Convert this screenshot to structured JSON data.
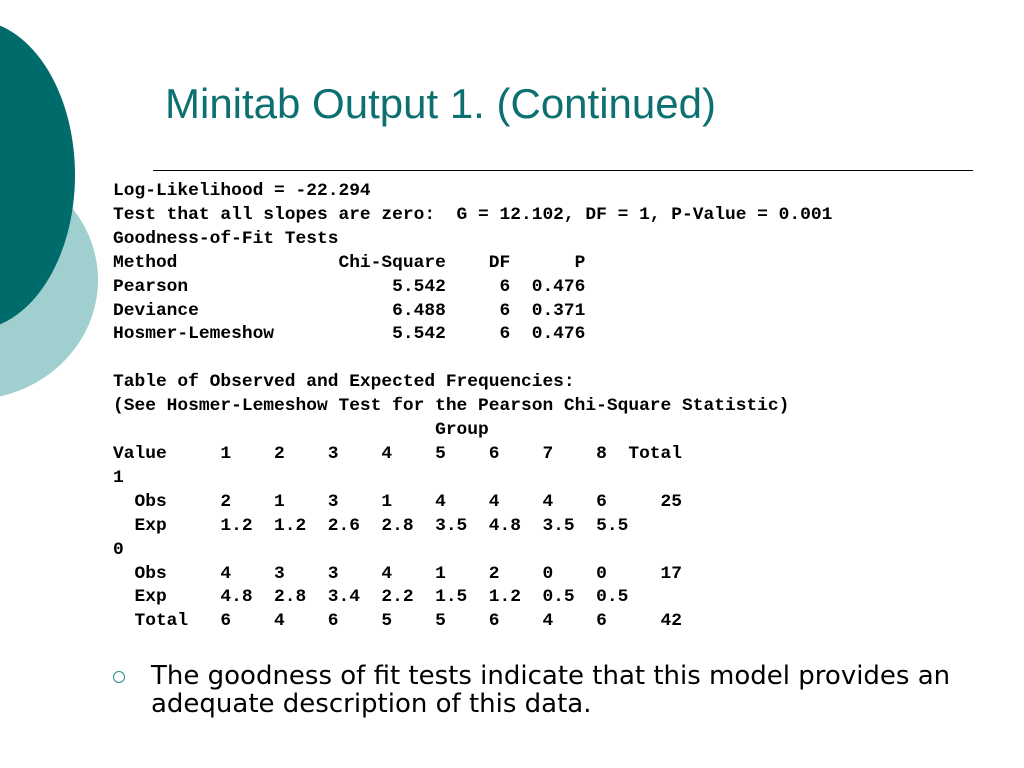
{
  "slide": {
    "title": "Minitab Output 1. (Continued)"
  },
  "output": {
    "lines": [
      "Log-Likelihood = -22.294",
      "Test that all slopes are zero:  G = 12.102, DF = 1, P-Value = 0.001",
      "Goodness-of-Fit Tests",
      "Method               Chi-Square    DF      P",
      "Pearson                   5.542     6  0.476",
      "Deviance                  6.488     6  0.371",
      "Hosmer-Lemeshow           5.542     6  0.476",
      "",
      "Table of Observed and Expected Frequencies:",
      "(See Hosmer-Lemeshow Test for the Pearson Chi-Square Statistic)",
      "                              Group",
      "Value     1    2    3    4    5    6    7    8  Total",
      "1",
      "  Obs     2    1    3    1    4    4    4    6     25",
      "  Exp     1.2  1.2  2.6  2.8  3.5  4.8  3.5  5.5",
      "0",
      "  Obs     4    3    3    4    1    2    0    0     17",
      "  Exp     4.8  2.8  3.4  2.2  1.5  1.2  0.5  0.5",
      "  Total   6    4    6    5    5    6    4    6     42"
    ]
  },
  "bullet": {
    "icon": "hollow-circle-bullet-icon",
    "text": "The goodness of fit tests indicate that this model provides an adequate description of this data."
  },
  "colors": {
    "title": "#0d7070",
    "circle_dark": "#006b6b",
    "circle_light": "#9fcfcf",
    "bullet_mark": "#2a8a8a"
  }
}
